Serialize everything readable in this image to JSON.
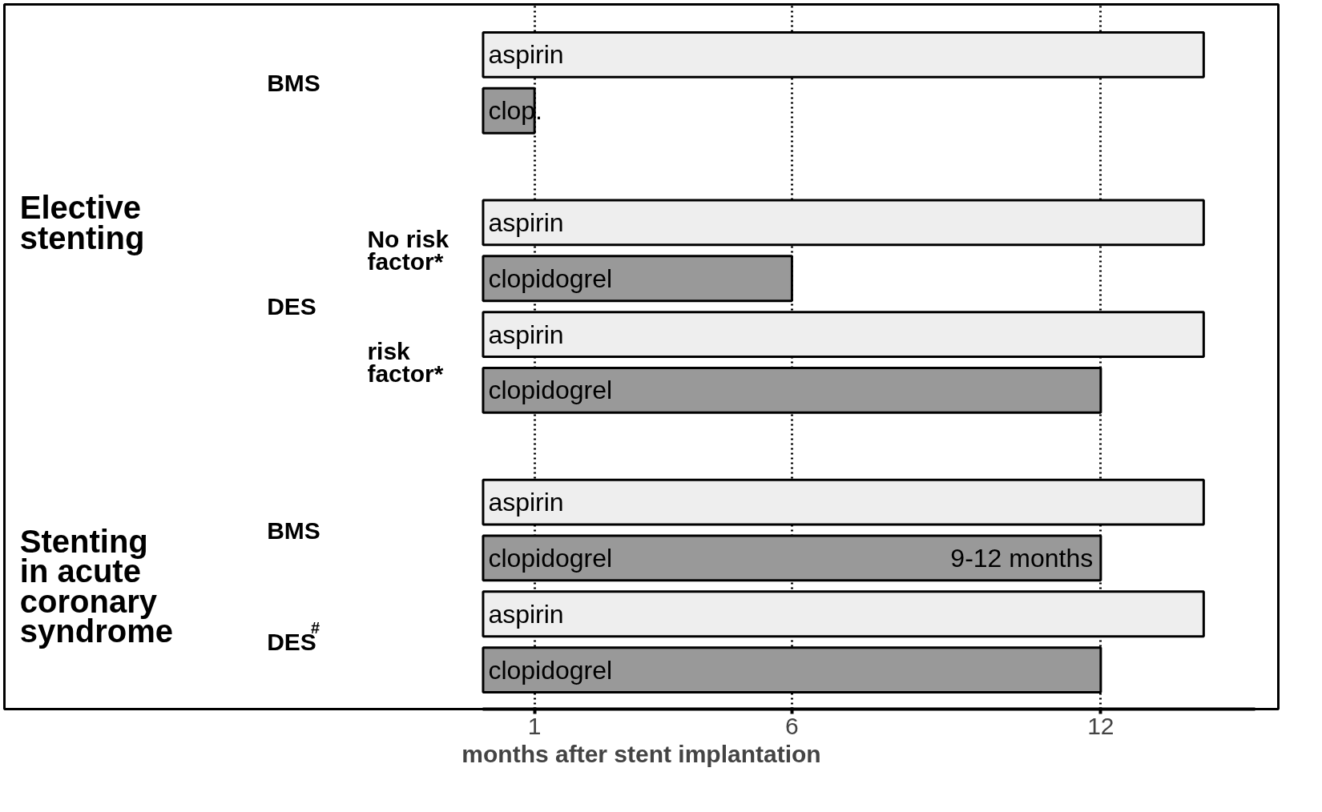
{
  "chart_data": {
    "type": "bar",
    "orientation": "horizontal",
    "categories": [
      "aspirin",
      "clop.",
      null,
      "aspirin",
      "clopidogrel",
      "aspirin",
      "clopidogrel",
      null,
      "aspirin",
      "clopidogrel",
      "aspirin",
      "clopidogrel"
    ],
    "values": [
      14,
      1,
      null,
      14,
      6,
      14,
      12,
      null,
      14,
      12,
      14,
      12
    ],
    "colors": [
      "#eeeeee",
      "#999999",
      null,
      "#eeeeee",
      "#999999",
      "#eeeeee",
      "#999999",
      null,
      "#eeeeee",
      "#999999",
      "#eeeeee",
      "#999999"
    ],
    "xlim": [
      0,
      15
    ],
    "xticks": [
      1,
      6,
      12
    ],
    "grid": "x",
    "xlabel": "months after stent implantation",
    "annotations": [
      "BMS",
      "Elective\nstenting",
      "No risk\nfactor*",
      "DES",
      "risk\nfactor*",
      "Stenting\nin acute\ncoronary\nsyndrome",
      "BMS",
      "DES$^{#}$",
      {
        "text": "9-12 months",
        "x": 12
      }
    ]
  }
}
